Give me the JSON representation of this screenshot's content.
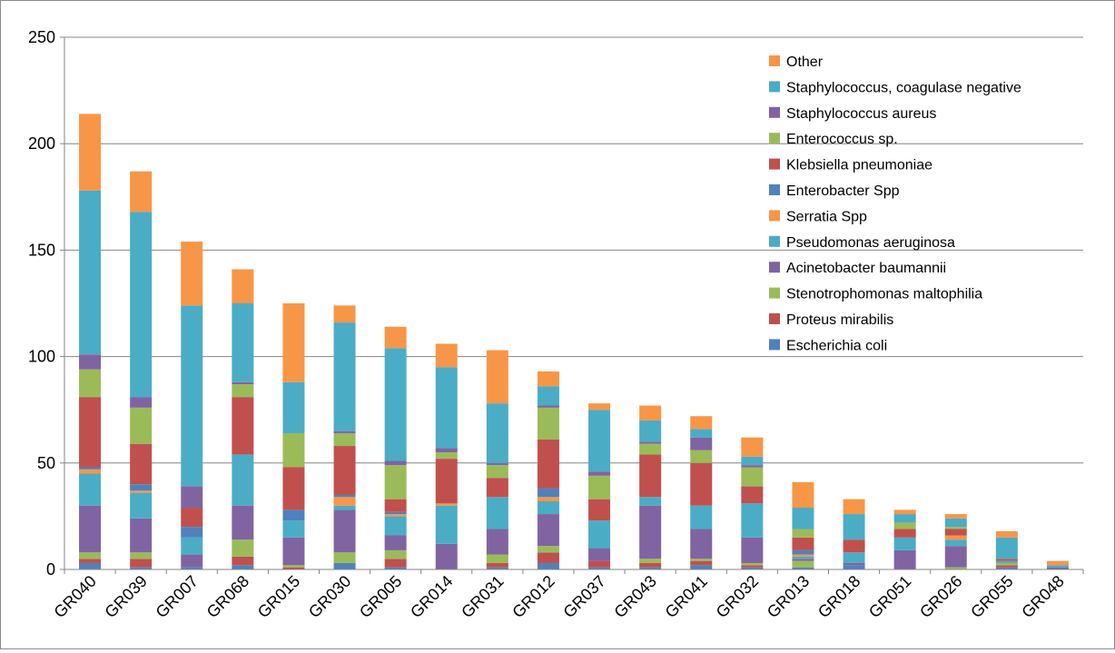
{
  "chart_data": {
    "type": "bar",
    "stacked": true,
    "title": "",
    "xlabel": "",
    "ylabel": "",
    "ylim": [
      0,
      250
    ],
    "yticks": [
      0,
      50,
      100,
      150,
      200,
      250
    ],
    "grid": "horizontal",
    "legend_position": "top-right",
    "categories": [
      "GR040",
      "GR039",
      "GR007",
      "GR068",
      "GR015",
      "GR030",
      "GR005",
      "GR014",
      "GR031",
      "GR012",
      "GR037",
      "GR043",
      "GR041",
      "GR032",
      "GR013",
      "GR018",
      "GR051",
      "GR026",
      "GR055",
      "GR048"
    ],
    "series": [
      {
        "name": "Escherichia coli",
        "color": "#4f81bd",
        "values": [
          3,
          1,
          1,
          2,
          0,
          3,
          1,
          0,
          1,
          3,
          1,
          1,
          2,
          1,
          1,
          2,
          0,
          0,
          1,
          0
        ]
      },
      {
        "name": "Proteus mirabilis",
        "color": "#c0504d",
        "values": [
          2,
          4,
          0,
          4,
          1,
          0,
          4,
          0,
          2,
          5,
          3,
          2,
          2,
          1,
          0,
          0,
          0,
          0,
          1,
          0
        ]
      },
      {
        "name": "Stenotrophomonas maltophilia",
        "color": "#9bbb59",
        "values": [
          3,
          3,
          0,
          8,
          1,
          5,
          4,
          0,
          4,
          3,
          0,
          2,
          1,
          1,
          3,
          0,
          0,
          1,
          1,
          0
        ]
      },
      {
        "name": "Acinetobacter baumannii",
        "color": "#8064a2",
        "values": [
          22,
          16,
          6,
          16,
          13,
          20,
          7,
          12,
          12,
          15,
          6,
          25,
          14,
          12,
          1,
          1,
          9,
          10,
          0,
          1
        ]
      },
      {
        "name": "Pseudomonas aeruginosa",
        "color": "#4bacc6",
        "values": [
          15,
          12,
          8,
          24,
          8,
          2,
          9,
          18,
          15,
          6,
          13,
          4,
          11,
          16,
          1,
          5,
          6,
          3,
          1,
          0
        ]
      },
      {
        "name": "Serratia Spp",
        "color": "#f79646",
        "values": [
          2,
          1,
          0,
          0,
          0,
          4,
          1,
          1,
          0,
          2,
          0,
          0,
          0,
          0,
          1,
          0,
          0,
          2,
          0,
          0
        ]
      },
      {
        "name": "Enterobacter Spp",
        "color": "#4f81bd",
        "values": [
          1,
          3,
          5,
          0,
          5,
          1,
          1,
          0,
          0,
          4,
          0,
          0,
          0,
          0,
          2,
          0,
          0,
          0,
          0,
          0
        ]
      },
      {
        "name": "Klebsiella pneumoniae",
        "color": "#c0504d",
        "values": [
          33,
          19,
          9,
          27,
          20,
          23,
          6,
          21,
          9,
          23,
          10,
          20,
          20,
          8,
          6,
          6,
          4,
          3,
          1,
          0
        ]
      },
      {
        "name": "Enterococcus sp.",
        "color": "#9bbb59",
        "values": [
          13,
          17,
          0,
          6,
          16,
          6,
          16,
          3,
          6,
          15,
          11,
          5,
          6,
          9,
          4,
          0,
          3,
          1,
          0,
          0
        ]
      },
      {
        "name": "Staphylococcus aureus",
        "color": "#8064a2",
        "values": [
          7,
          5,
          10,
          1,
          0,
          1,
          2,
          2,
          1,
          1,
          2,
          1,
          6,
          1,
          0,
          0,
          0,
          0,
          0,
          0
        ]
      },
      {
        "name": "Staphylococcus, coagulase negative",
        "color": "#4bacc6",
        "values": [
          77,
          87,
          85,
          37,
          24,
          51,
          53,
          38,
          28,
          9,
          29,
          10,
          4,
          4,
          10,
          12,
          4,
          4,
          10,
          1
        ]
      },
      {
        "name": "Other",
        "color": "#f79646",
        "values": [
          36,
          19,
          30,
          16,
          37,
          8,
          10,
          11,
          25,
          7,
          3,
          7,
          6,
          9,
          12,
          7,
          2,
          2,
          3,
          2
        ]
      }
    ]
  }
}
